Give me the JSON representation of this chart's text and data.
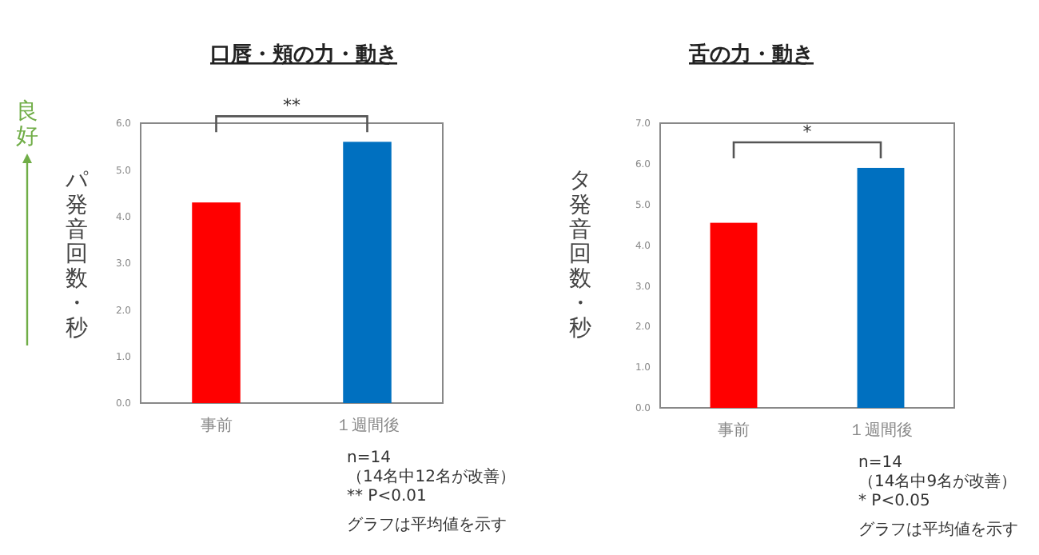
{
  "chart_data": [
    {
      "type": "bar",
      "title": "口唇・頬の力・動き",
      "ylabel": "パ発音回数・秒",
      "categories": [
        "事前",
        "１週間後"
      ],
      "values": [
        4.3,
        5.6
      ],
      "colors": [
        "#ff0000",
        "#0070c0"
      ],
      "ylim": [
        0,
        6
      ],
      "yticks": [
        {
          "value": 0,
          "label": "0.0"
        },
        {
          "value": 1,
          "label": "1.0"
        },
        {
          "value": 2,
          "label": "2.0"
        },
        {
          "value": 3,
          "label": "3.0"
        },
        {
          "value": 4,
          "label": "4.0"
        },
        {
          "value": 5,
          "label": "5.0"
        },
        {
          "value": 6,
          "label": "6.0"
        }
      ],
      "grid": false,
      "annotations": [
        "**",
        "n=14",
        "（14名中12名が改善）",
        "** P<0.01",
        "グラフは平均値を示す",
        "良好"
      ]
    },
    {
      "type": "bar",
      "title": "舌の力・動き",
      "ylabel": "タ発音回数・秒",
      "categories": [
        "事前",
        "１週間後"
      ],
      "values": [
        4.55,
        5.9
      ],
      "colors": [
        "#ff0000",
        "#0070c0"
      ],
      "ylim": [
        0,
        7
      ],
      "yticks": [
        {
          "value": 0,
          "label": "0.0"
        },
        {
          "value": 1,
          "label": "1.0"
        },
        {
          "value": 2,
          "label": "2.0"
        },
        {
          "value": 3,
          "label": "3.0"
        },
        {
          "value": 4,
          "label": "4.0"
        },
        {
          "value": 5,
          "label": "5.0"
        },
        {
          "value": 6,
          "label": "6.0"
        },
        {
          "value": 7,
          "label": "7.0"
        }
      ],
      "grid": false,
      "annotations": [
        "*",
        "n=14",
        "（14名中9名が改善）",
        "* P<0.05",
        "グラフは平均値を示す"
      ]
    }
  ]
}
